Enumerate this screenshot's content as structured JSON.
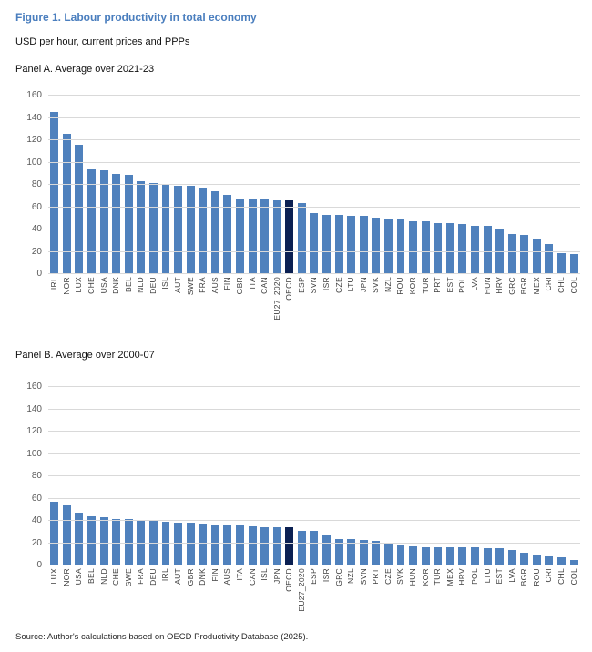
{
  "header": {
    "title": "Figure 1. Labour productivity in total economy",
    "subtitle": "USD per hour, current prices and PPPs"
  },
  "footer": {
    "source": "Source: Author's calculations based on OECD Productivity Database (2025)."
  },
  "colors": {
    "title_blue": "#4A7EBE",
    "bar": "#4F81BD",
    "highlight_bar": "#0B2052",
    "gridline": "#D9D9D9",
    "y_tick_text": "#595959",
    "x_tick_text": "#404040"
  },
  "chart_data": [
    {
      "type": "bar",
      "title": "Panel A. Average over 2021-23",
      "xlabel": "",
      "ylabel": "",
      "ylim": [
        0,
        160
      ],
      "ytick_step": 20,
      "grid": true,
      "legend": "none",
      "highlight_category": "OECD",
      "categories": [
        "IRL",
        "NOR",
        "LUX",
        "CHE",
        "USA",
        "DNK",
        "BEL",
        "NLD",
        "DEU",
        "ISL",
        "AUT",
        "SWE",
        "FRA",
        "AUS",
        "FIN",
        "GBR",
        "ITA",
        "CAN",
        "EU27_2020",
        "OECD",
        "ESP",
        "SVN",
        "ISR",
        "CZE",
        "LTU",
        "JPN",
        "SVK",
        "NZL",
        "ROU",
        "KOR",
        "TUR",
        "PRT",
        "EST",
        "POL",
        "LVA",
        "HUN",
        "HRV",
        "GRC",
        "BGR",
        "MEX",
        "CRI",
        "CHL",
        "COL"
      ],
      "values": [
        145,
        126,
        116,
        94,
        93,
        90,
        89,
        83,
        82,
        81,
        79,
        79,
        77,
        74,
        71,
        68,
        67,
        67,
        66,
        66,
        64,
        55,
        53,
        53,
        52,
        52,
        51,
        50,
        49,
        47,
        47,
        46,
        46,
        45,
        43,
        43,
        41,
        36,
        35,
        32,
        27,
        19,
        18
      ]
    },
    {
      "type": "bar",
      "title": "Panel B. Average over 2000-07",
      "xlabel": "",
      "ylabel": "",
      "ylim": [
        0,
        160
      ],
      "ytick_step": 20,
      "grid": true,
      "legend": "none",
      "highlight_category": "OECD",
      "categories": [
        "LUX",
        "NOR",
        "USA",
        "BEL",
        "NLD",
        "CHE",
        "SWE",
        "FRA",
        "DEU",
        "IRL",
        "AUT",
        "GBR",
        "DNK",
        "FIN",
        "AUS",
        "ITA",
        "CAN",
        "ISL",
        "JPN",
        "OECD",
        "EU27_2020",
        "ESP",
        "ISR",
        "GRC",
        "NZL",
        "SVN",
        "PRT",
        "CZE",
        "SVK",
        "HUN",
        "KOR",
        "TUR",
        "MEX",
        "HRV",
        "POL",
        "LTU",
        "EST",
        "LVA",
        "BGR",
        "ROU",
        "CRI",
        "CHL",
        "COL"
      ],
      "values": [
        57,
        54,
        47,
        44,
        43.5,
        42,
        41.5,
        41,
        40.5,
        39,
        38.5,
        38.5,
        37.5,
        37,
        36.5,
        36,
        35.5,
        34.5,
        34,
        34,
        31,
        31,
        27,
        24,
        23.5,
        23,
        22,
        20,
        19,
        17,
        16.5,
        16.5,
        16.5,
        16,
        16,
        15.5,
        15.5,
        14,
        11.5,
        9.5,
        8,
        7,
        5
      ]
    }
  ]
}
